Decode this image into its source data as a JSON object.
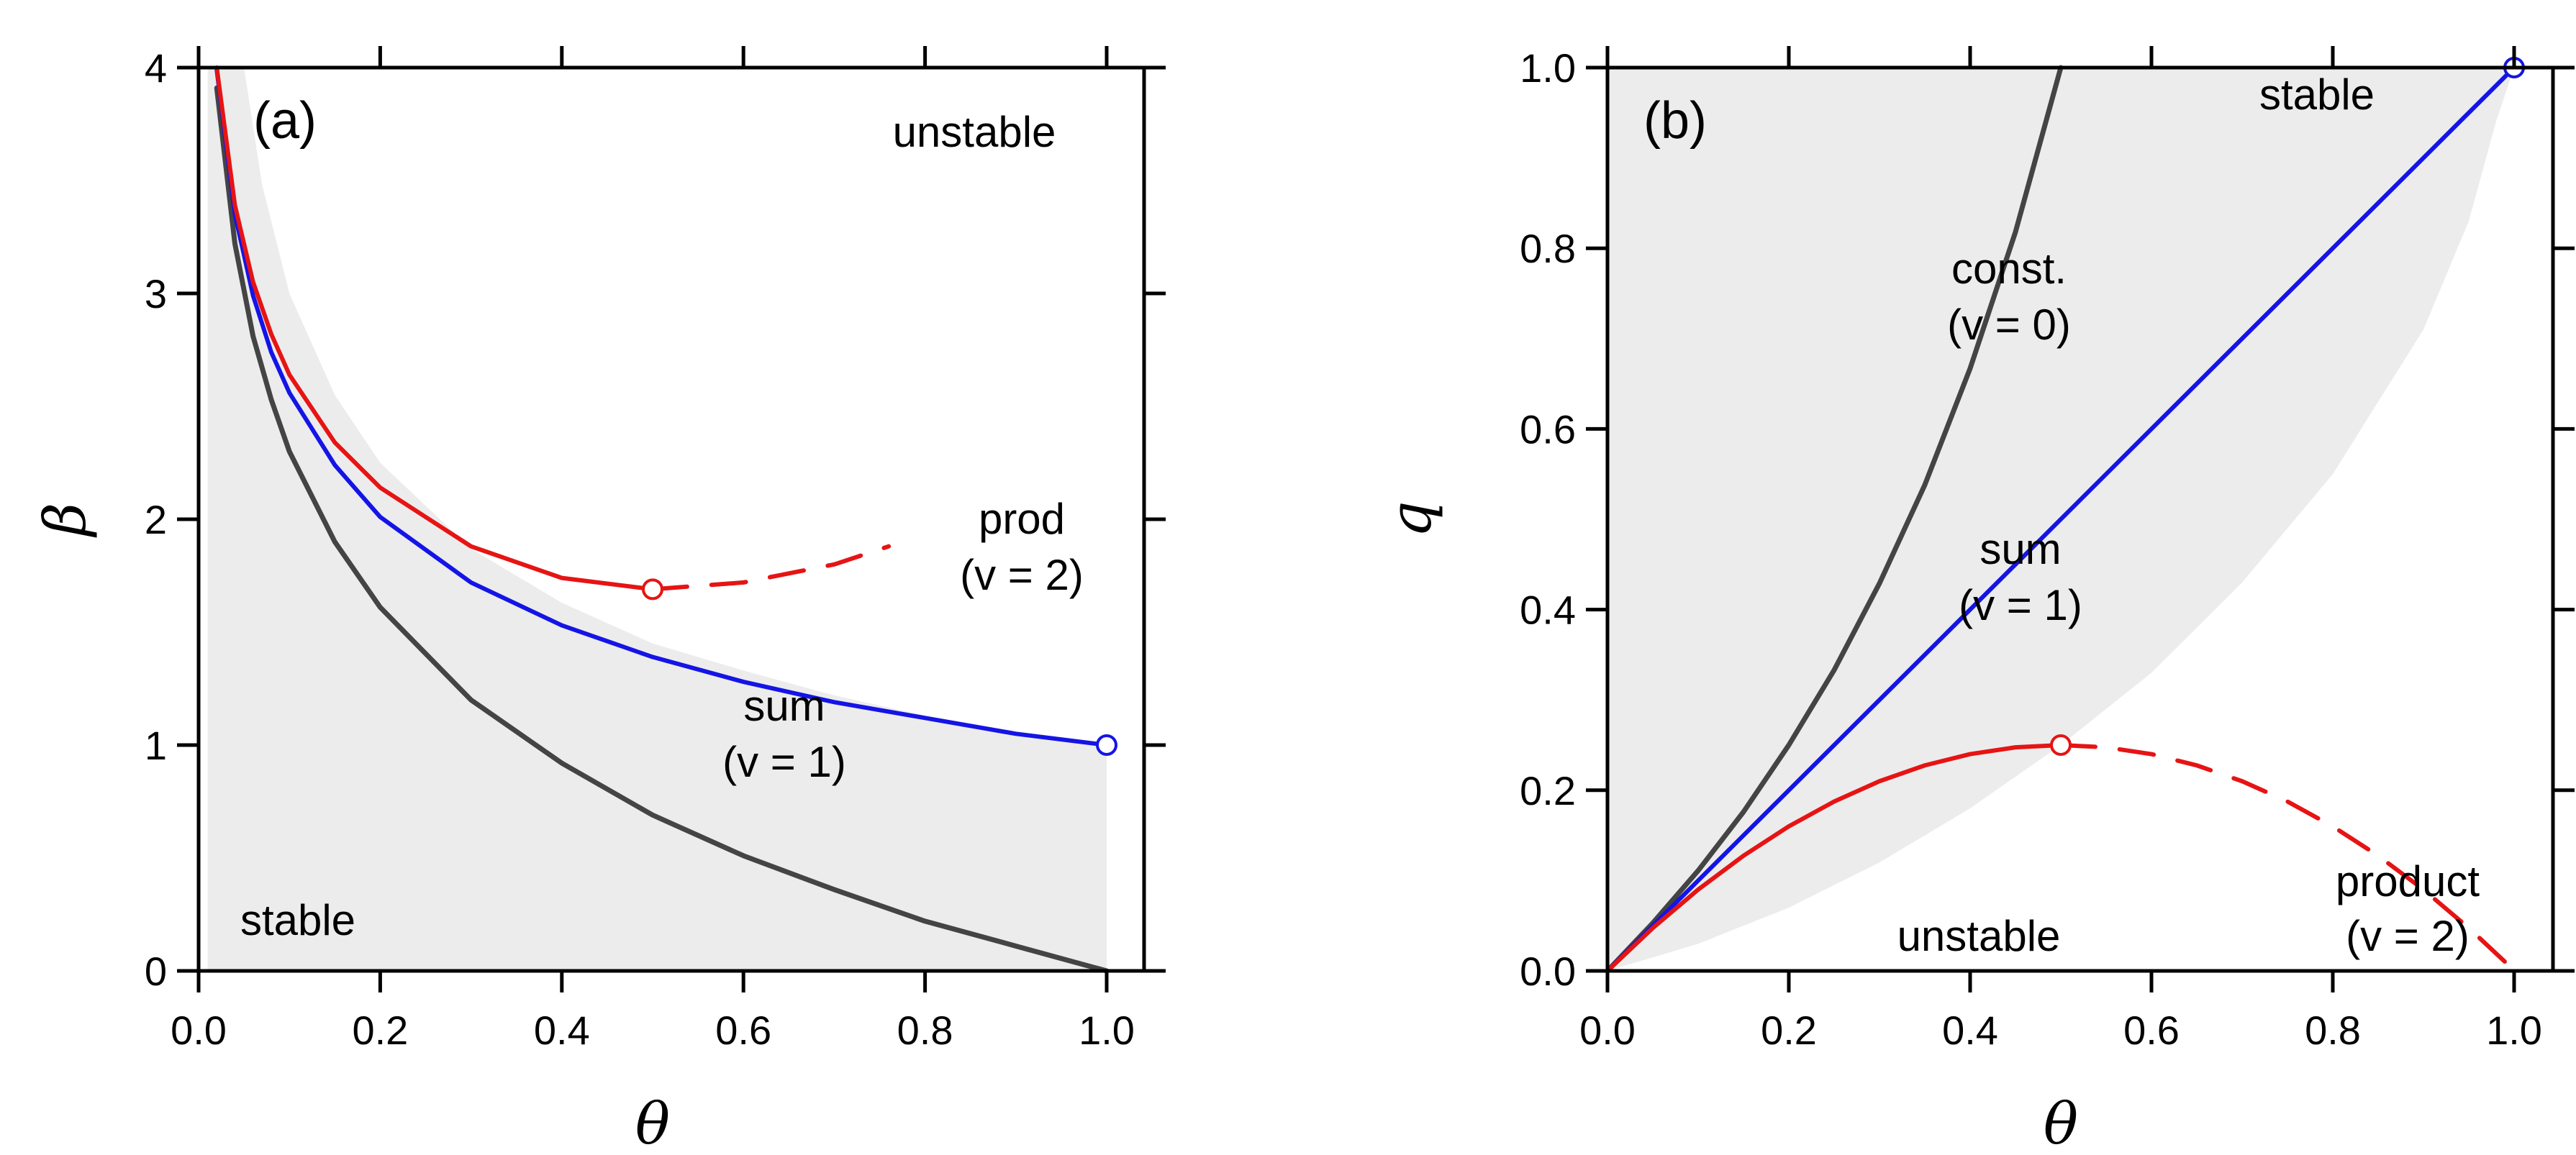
{
  "colors": {
    "stable_region": "#ececec",
    "const": "#444444",
    "sum": "#1414e6",
    "product": "#e61414",
    "frame": "#000000"
  },
  "chart_data": [
    {
      "panel": "(a)",
      "type": "line",
      "xlabel": "θ",
      "ylabel": "β",
      "xlim": [
        0.0,
        1.0
      ],
      "ylim": [
        0,
        4
      ],
      "xticks": [
        "0.0",
        "0.2",
        "0.4",
        "0.6",
        "0.8",
        "1.0"
      ],
      "yticks": [
        "0",
        "1",
        "2",
        "3",
        "4"
      ],
      "region_labels": {
        "upper": "unstable",
        "lower": "stable"
      },
      "series": [
        {
          "name": "const. (v = 0)",
          "style": "solid",
          "x": [
            0.02,
            0.04,
            0.06,
            0.08,
            0.1,
            0.15,
            0.2,
            0.3,
            0.4,
            0.5,
            0.6,
            0.7,
            0.8,
            0.9,
            1.0
          ],
          "y": [
            3.91,
            3.22,
            2.81,
            2.53,
            2.3,
            1.9,
            1.61,
            1.2,
            0.92,
            0.69,
            0.51,
            0.36,
            0.22,
            0.11,
            0.0
          ]
        },
        {
          "name": "sum",
          "label": "sum",
          "label2": "(v = 1)",
          "style": "solid",
          "x": [
            0.02,
            0.04,
            0.06,
            0.08,
            0.1,
            0.15,
            0.2,
            0.3,
            0.4,
            0.5,
            0.6,
            0.7,
            0.8,
            0.9,
            1.0
          ],
          "y": [
            3.99,
            3.35,
            2.99,
            2.74,
            2.56,
            2.24,
            2.01,
            1.72,
            1.53,
            1.39,
            1.28,
            1.19,
            1.12,
            1.05,
            1.0
          ]
        },
        {
          "name": "prod",
          "label": "prod",
          "label2": "(v = 2)",
          "style": "solid",
          "x": [
            0.02,
            0.04,
            0.06,
            0.08,
            0.1,
            0.15,
            0.2,
            0.3,
            0.4,
            0.5
          ],
          "y": [
            4.0,
            3.39,
            3.05,
            2.82,
            2.64,
            2.34,
            2.14,
            1.88,
            1.74,
            1.69
          ]
        },
        {
          "name": "prod-unstable",
          "style": "dashed",
          "x": [
            0.5,
            0.6,
            0.7,
            0.76
          ],
          "y": [
            1.69,
            1.72,
            1.8,
            1.88
          ]
        }
      ],
      "markers": [
        {
          "series": "prod",
          "x": 0.5,
          "y": 1.69
        },
        {
          "series": "sum",
          "x": 1.0,
          "y": 1.0
        }
      ],
      "stable_region": {
        "x": [
          0.0,
          0.01,
          0.03,
          0.05,
          0.07,
          0.1,
          0.15,
          0.2,
          0.3,
          0.4,
          0.5,
          0.6,
          0.7,
          0.8,
          0.9,
          1.0
        ],
        "y": [
          4.0,
          4.0,
          4.0,
          4.0,
          3.48,
          3.0,
          2.55,
          2.25,
          1.87,
          1.63,
          1.45,
          1.33,
          1.22,
          1.13,
          1.06,
          1.0
        ]
      }
    },
    {
      "panel": "(b)",
      "type": "line",
      "xlabel": "θ",
      "ylabel": "q",
      "xlim": [
        0.0,
        1.0
      ],
      "ylim": [
        0.0,
        1.0
      ],
      "xticks": [
        "0.0",
        "0.2",
        "0.4",
        "0.6",
        "0.8",
        "1.0"
      ],
      "yticks": [
        "0.0",
        "0.2",
        "0.4",
        "0.6",
        "0.8",
        "1.0"
      ],
      "region_labels": {
        "upper": "stable",
        "lower": "unstable"
      },
      "series": [
        {
          "name": "const.",
          "label": "const.",
          "label2": "(v = 0)",
          "style": "solid",
          "x": [
            0.0,
            0.05,
            0.1,
            0.15,
            0.2,
            0.25,
            0.3,
            0.35,
            0.4,
            0.45,
            0.5
          ],
          "y": [
            0.0,
            0.053,
            0.111,
            0.176,
            0.25,
            0.333,
            0.429,
            0.538,
            0.667,
            0.818,
            1.0
          ]
        },
        {
          "name": "sum",
          "label": "sum",
          "label2": "(v = 1)",
          "style": "solid",
          "x": [
            0.0,
            1.0
          ],
          "y": [
            0.0,
            1.0
          ]
        },
        {
          "name": "product",
          "style": "solid",
          "x": [
            0.0,
            0.05,
            0.1,
            0.15,
            0.2,
            0.25,
            0.3,
            0.35,
            0.4,
            0.45,
            0.5
          ],
          "y": [
            0.0,
            0.0475,
            0.09,
            0.1275,
            0.16,
            0.1875,
            0.21,
            0.2275,
            0.24,
            0.2475,
            0.25
          ]
        },
        {
          "name": "product-unstable",
          "label": "product",
          "label2": "(v = 2)",
          "style": "dashed",
          "x": [
            0.5,
            0.55,
            0.6,
            0.65,
            0.7,
            0.75,
            0.8,
            0.85,
            0.9,
            0.95,
            0.99
          ],
          "y": [
            0.25,
            0.2475,
            0.24,
            0.2275,
            0.21,
            0.1875,
            0.16,
            0.1275,
            0.09,
            0.0475,
            0.01
          ]
        }
      ],
      "markers": [
        {
          "series": "product",
          "x": 0.5,
          "y": 0.25
        },
        {
          "series": "sum",
          "x": 1.0,
          "y": 1.0
        }
      ],
      "stable_region": {
        "x": [
          0.0,
          0.1,
          0.2,
          0.3,
          0.4,
          0.5,
          0.6,
          0.7,
          0.8,
          0.9,
          0.95,
          0.98,
          1.0
        ],
        "y": [
          0.0,
          0.03,
          0.07,
          0.12,
          0.18,
          0.25,
          0.33,
          0.43,
          0.55,
          0.71,
          0.83,
          0.94,
          1.0
        ]
      }
    }
  ]
}
